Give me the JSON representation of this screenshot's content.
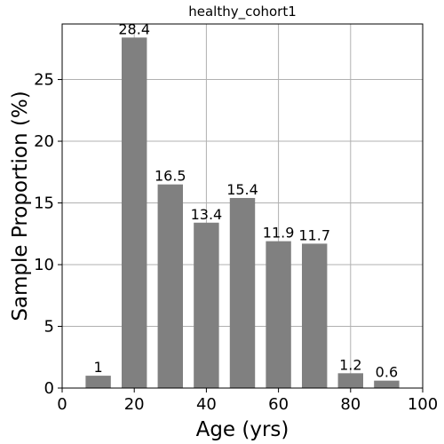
{
  "chart_data": {
    "type": "bar",
    "title": "healthy_cohort1",
    "xlabel": "Age (yrs)",
    "ylabel": "Sample Proportion (%)",
    "x": [
      10,
      20,
      30,
      40,
      50,
      60,
      70,
      80,
      90
    ],
    "values": [
      1,
      28.4,
      16.5,
      13.4,
      15.4,
      11.9,
      11.7,
      1.2,
      0.6
    ],
    "value_labels": [
      "1",
      "28.4",
      "16.5",
      "13.4",
      "15.4",
      "11.9",
      "11.7",
      "1.2",
      "0.6"
    ],
    "bar_width": 7,
    "xlim": [
      0,
      100
    ],
    "ylim": [
      0,
      29.5
    ],
    "xticks": [
      0,
      20,
      40,
      60,
      80,
      100
    ],
    "xtick_labels": [
      "0",
      "20",
      "40",
      "60",
      "80",
      "100"
    ],
    "yticks": [
      0,
      5,
      10,
      15,
      20,
      25
    ],
    "ytick_labels": [
      "0",
      "5",
      "10",
      "15",
      "20",
      "25"
    ],
    "grid": true,
    "bar_color": "#808080"
  }
}
